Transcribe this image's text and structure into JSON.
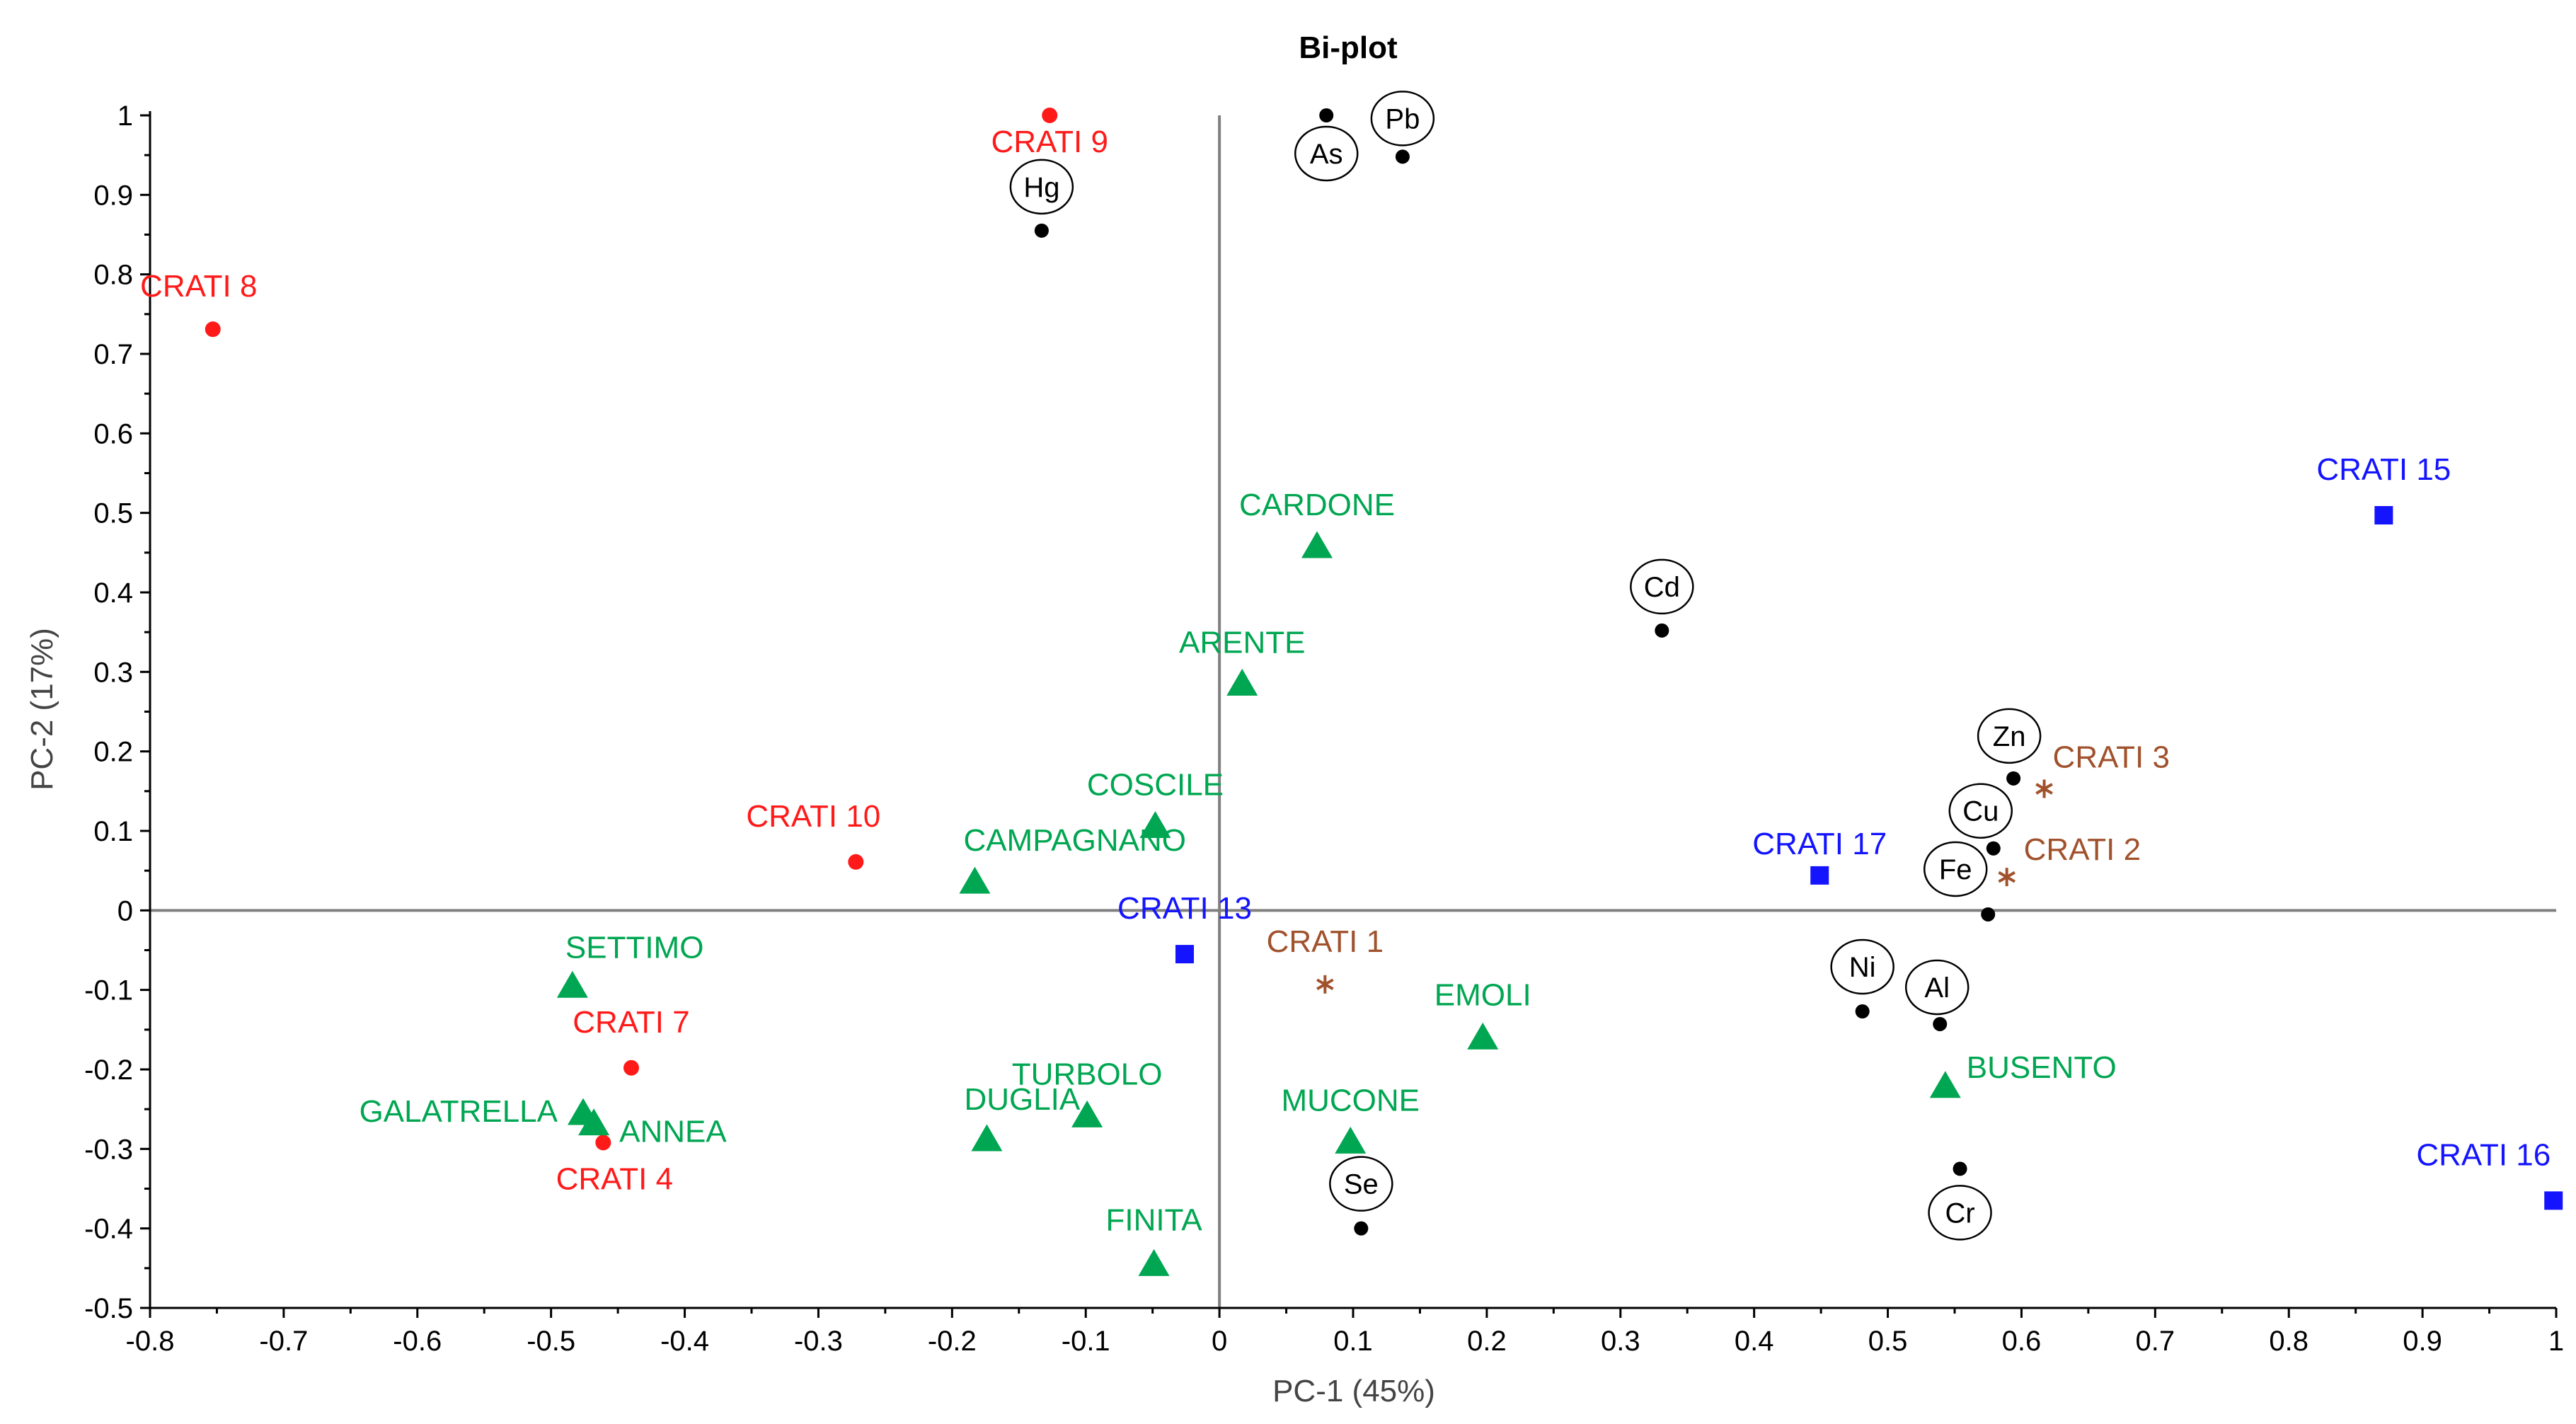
{
  "chart_data": {
    "type": "scatter",
    "title": "Bi-plot",
    "xlabel": "PC-1 (45%)",
    "ylabel": "PC-2 (17%)",
    "xlim": [
      -0.8,
      1.0
    ],
    "ylim": [
      -0.5,
      1.0
    ],
    "x_ticks": [
      "-0.8",
      "-0.7",
      "-0.6",
      "-0.5",
      "-0.4",
      "-0.3",
      "-0.2",
      "-0.1",
      "0",
      "0.1",
      "0.2",
      "0.3",
      "0.4",
      "0.5",
      "0.6",
      "0.7",
      "0.8",
      "0.9",
      "1"
    ],
    "y_ticks": [
      "1",
      "0.9",
      "0.8",
      "0.7",
      "0.6",
      "0.5",
      "0.4",
      "0.3",
      "0.2",
      "0.1",
      "0",
      "-0.1",
      "-0.2",
      "-0.3",
      "-0.4",
      "-0.5"
    ],
    "series": [
      {
        "name": "variables",
        "marker": "circle-dot",
        "color": "#000000",
        "points": [
          {
            "label": "Hg",
            "x": -0.133,
            "y": 0.855
          },
          {
            "label": "As",
            "x": 0.08,
            "y": 1.0
          },
          {
            "label": "Pb",
            "x": 0.137,
            "y": 0.948
          },
          {
            "label": "Cd",
            "x": 0.331,
            "y": 0.352
          },
          {
            "label": "Zn",
            "x": 0.594,
            "y": 0.166
          },
          {
            "label": "Cu",
            "x": 0.579,
            "y": 0.078
          },
          {
            "label": "Fe",
            "x": 0.575,
            "y": -0.005
          },
          {
            "label": "Ni",
            "x": 0.481,
            "y": -0.127
          },
          {
            "label": "Al",
            "x": 0.539,
            "y": -0.143
          },
          {
            "label": "Se",
            "x": 0.106,
            "y": -0.4
          },
          {
            "label": "Cr",
            "x": 0.554,
            "y": -0.325
          }
        ]
      },
      {
        "name": "red-sites",
        "marker": "circle",
        "color": "#ff1a1a",
        "points": [
          {
            "label": "CRATI 9",
            "x": -0.127,
            "y": 1.0
          },
          {
            "label": "CRATI 8",
            "x": -0.753,
            "y": 0.731
          },
          {
            "label": "CRATI 10",
            "x": -0.272,
            "y": 0.061
          },
          {
            "label": "CRATI 7",
            "x": -0.44,
            "y": -0.198
          },
          {
            "label": "CRATI 4",
            "x": -0.461,
            "y": -0.292
          }
        ]
      },
      {
        "name": "green-sites",
        "marker": "triangle",
        "color": "#00a651",
        "points": [
          {
            "label": "CARDONE",
            "x": 0.073,
            "y": 0.456
          },
          {
            "label": "ARENTE",
            "x": 0.017,
            "y": 0.283
          },
          {
            "label": "COSCILE",
            "x": -0.048,
            "y": 0.104
          },
          {
            "label": "CAMPAGNANO",
            "x": -0.183,
            "y": 0.034
          },
          {
            "label": "SETTIMO",
            "x": -0.484,
            "y": -0.097
          },
          {
            "label": "GALATRELLA",
            "x": -0.476,
            "y": -0.257
          },
          {
            "label": "ANNEA",
            "x": -0.468,
            "y": -0.27
          },
          {
            "label": "DUGLIA",
            "x": -0.174,
            "y": -0.29
          },
          {
            "label": "TURBOLO",
            "x": -0.099,
            "y": -0.26
          },
          {
            "label": "MUCONE",
            "x": 0.098,
            "y": -0.293
          },
          {
            "label": "EMOLI",
            "x": 0.197,
            "y": -0.162
          },
          {
            "label": "FINITA",
            "x": -0.049,
            "y": -0.447
          },
          {
            "label": "BUSENTO",
            "x": 0.543,
            "y": -0.223
          }
        ]
      },
      {
        "name": "blue-sites",
        "marker": "square",
        "color": "#1414ff",
        "points": [
          {
            "label": "CRATI 15",
            "x": 0.871,
            "y": 0.497
          },
          {
            "label": "CRATI 17",
            "x": 0.449,
            "y": 0.044
          },
          {
            "label": "CRATI 13",
            "x": -0.026,
            "y": -0.055
          },
          {
            "label": "CRATI 16",
            "x": 0.998,
            "y": -0.365
          }
        ]
      },
      {
        "name": "brown-sites",
        "marker": "asterisk",
        "color": "#a0522d",
        "points": [
          {
            "label": "CRATI 3",
            "x": 0.617,
            "y": 0.153
          },
          {
            "label": "CRATI 2",
            "x": 0.589,
            "y": 0.042
          },
          {
            "label": "CRATI 1",
            "x": 0.079,
            "y": -0.093
          }
        ]
      }
    ]
  }
}
